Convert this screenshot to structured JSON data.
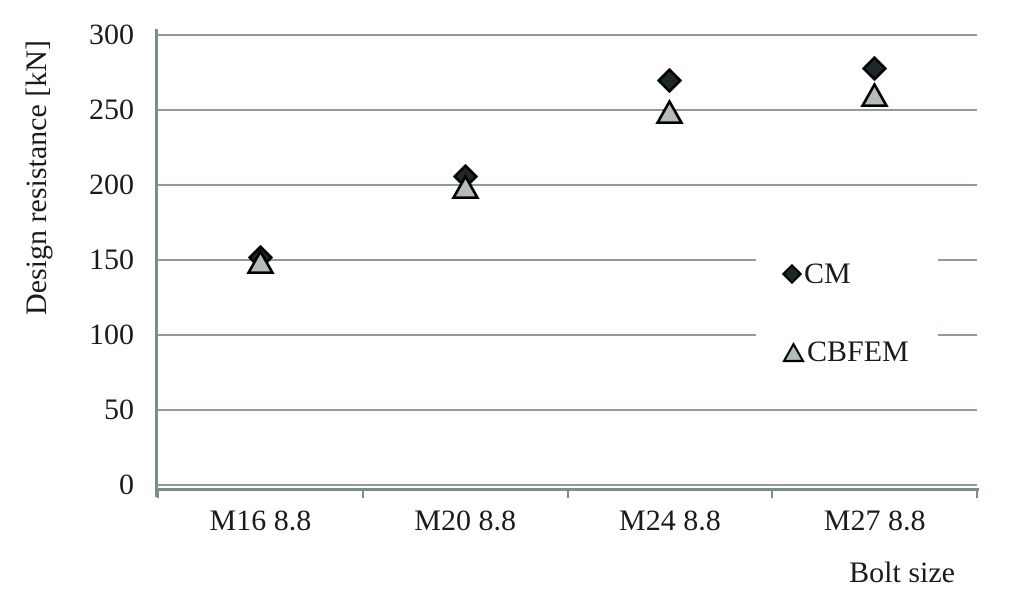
{
  "chart_data": {
    "type": "scatter",
    "title": "",
    "xlabel": "Bolt size",
    "ylabel": "Design resistance [kN]",
    "unit": "kN",
    "categories": [
      "M16 8.8",
      "M20 8.8",
      "M24 8.8",
      "M27 8.8"
    ],
    "series": [
      {
        "name": "CM",
        "marker": "diamond",
        "fill": "#1d282b",
        "values": [
          152,
          206,
          270,
          278
        ]
      },
      {
        "name": "CBFEM",
        "marker": "triangle",
        "fill": "#b3bdbb",
        "values": [
          149,
          199,
          249,
          260
        ]
      }
    ],
    "ylim": [
      0,
      300
    ],
    "yticks": [
      0,
      50,
      100,
      150,
      200,
      250,
      300
    ],
    "grid": "horizontal-only",
    "legend_position": "inside-right"
  },
  "colors": {
    "background": "#ffffff",
    "grid": "#8e9c9b",
    "axis": "#7b8d8b",
    "text": "#1b1b1b",
    "marker_stroke": "#000000",
    "legend_bg": "#ffffff"
  }
}
